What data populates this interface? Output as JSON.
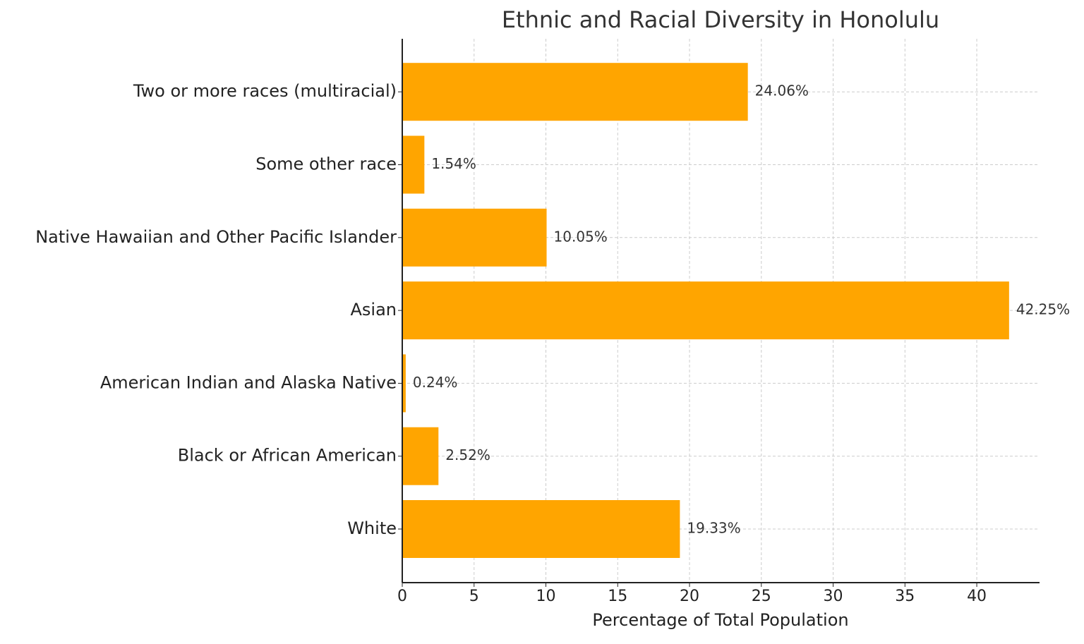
{
  "chart_data": {
    "type": "barh",
    "title": "Ethnic and Racial Diversity in Honolulu",
    "xlabel": "Percentage of Total Population",
    "categories": [
      "White",
      "Black or African American",
      "American Indian and Alaska Native",
      "Asian",
      "Native Hawaiian and Other Pacific Islander",
      "Some other race",
      "Two or more races (multiracial)"
    ],
    "values": [
      19.33,
      2.52,
      0.24,
      42.25,
      10.05,
      1.54,
      24.06
    ],
    "value_labels": [
      "19.33%",
      "2.52%",
      "0.24%",
      "42.25%",
      "10.05%",
      "1.54%",
      "24.06%"
    ],
    "color": "#ffa500",
    "xlim": [
      0,
      44.37
    ],
    "xticks": [
      0,
      5,
      10,
      15,
      20,
      25,
      30,
      35,
      40
    ],
    "grid": true
  }
}
